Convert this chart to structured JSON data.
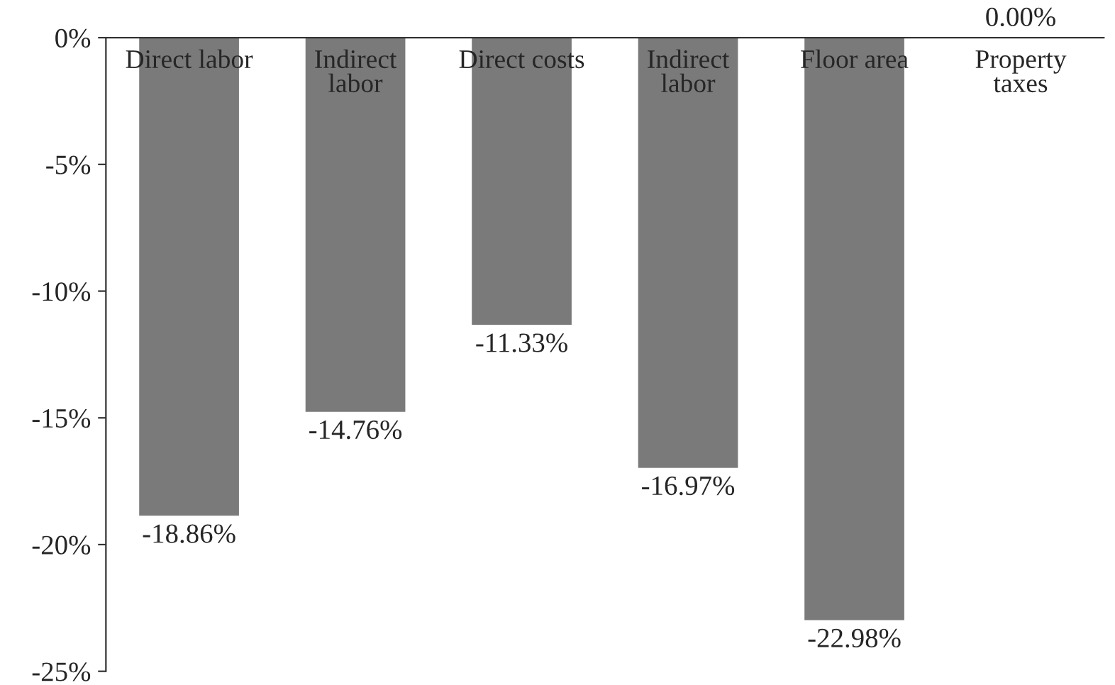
{
  "chart_data": {
    "type": "bar",
    "categories": [
      "Direct labor",
      "Indirect\nlabor",
      "Direct costs",
      "Indirect\nlabor",
      "Floor area",
      "Property\ntaxes"
    ],
    "values": [
      -18.86,
      -14.76,
      -11.33,
      -16.97,
      -22.98,
      0.0
    ],
    "value_labels": [
      "-18.86%",
      "-14.76%",
      "-11.33%",
      "-16.97%",
      "-22.98%",
      "0.00%"
    ],
    "color": "#7a7a7a",
    "ylim": [
      -25,
      0
    ],
    "yticks": [
      {
        "value": 0,
        "label": "0%"
      },
      {
        "value": -5,
        "label": "-5%"
      },
      {
        "value": -10,
        "label": "-10%"
      },
      {
        "value": -15,
        "label": "-15%"
      },
      {
        "value": -20,
        "label": "-20%"
      },
      {
        "value": -25,
        "label": "-25%"
      }
    ],
    "grid": false
  }
}
